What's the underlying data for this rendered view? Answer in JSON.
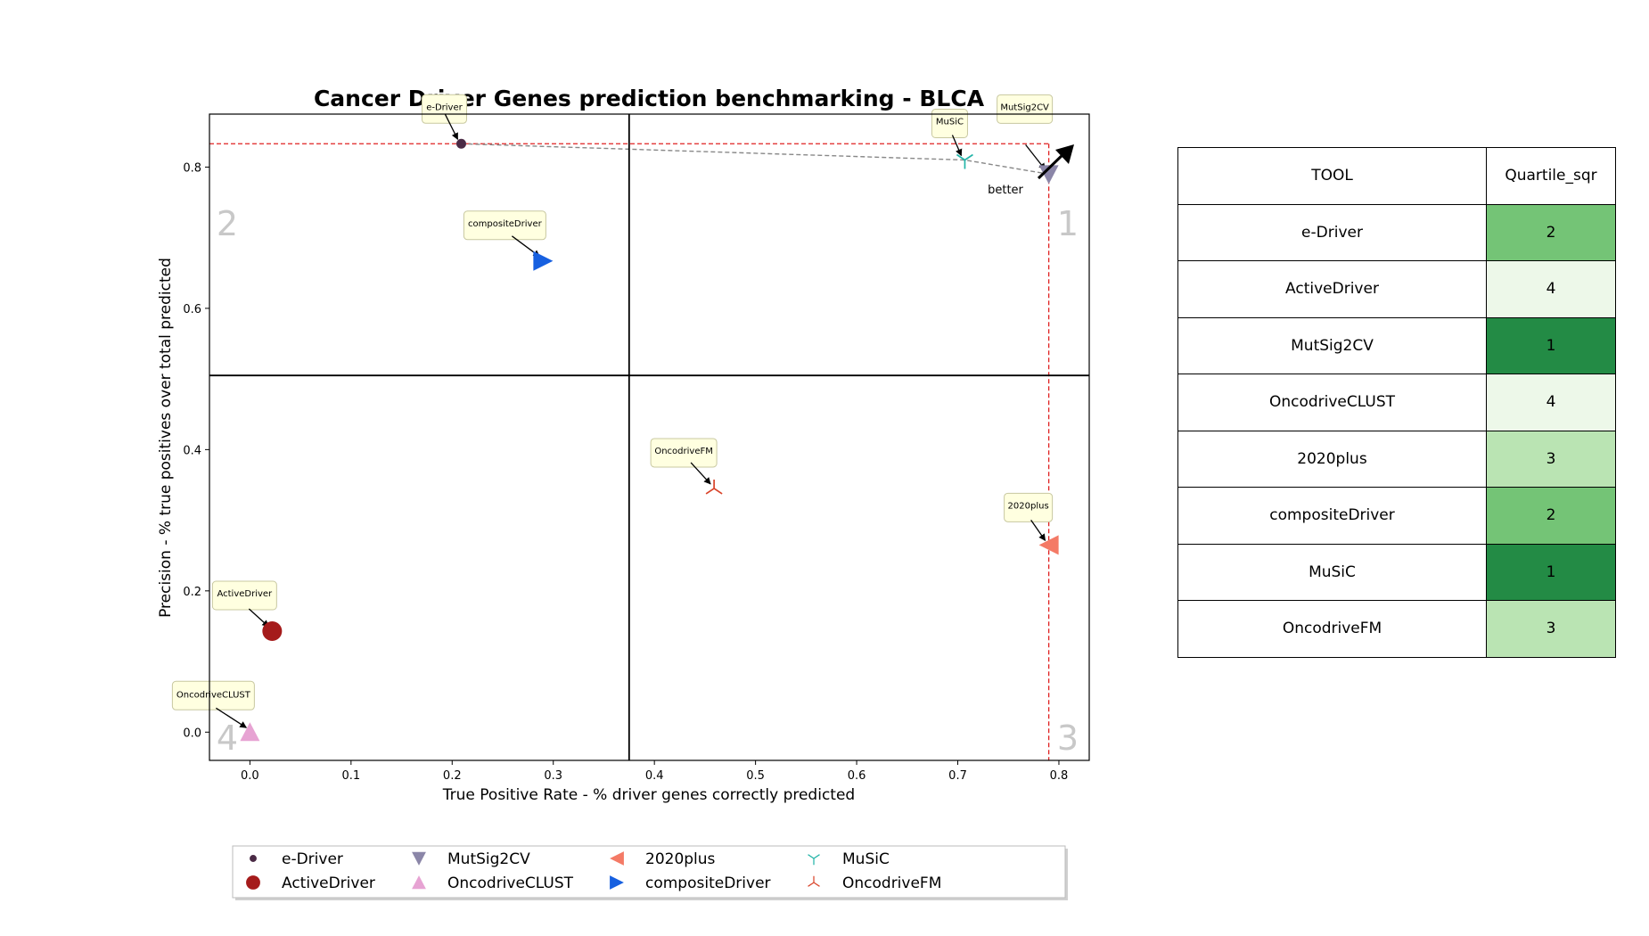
{
  "chart_data": {
    "type": "scatter",
    "title": "Cancer Driver Genes prediction benchmarking - BLCA",
    "xlabel": "True Positive Rate - % driver genes correctly predicted",
    "ylabel": "Precision - % true positives over total predicted",
    "xlim": [
      -0.04,
      0.83
    ],
    "ylim": [
      -0.04,
      0.875
    ],
    "xticks": [
      "0.0",
      "0.1",
      "0.2",
      "0.3",
      "0.4",
      "0.5",
      "0.6",
      "0.7",
      "0.8"
    ],
    "yticks": [
      "0.0",
      "0.2",
      "0.4",
      "0.6",
      "0.8"
    ],
    "quadrant_divider": {
      "x": 0.375,
      "y": 0.505
    },
    "quadrant_labels": [
      "1",
      "2",
      "3",
      "4"
    ],
    "better_label": "better",
    "optimal_lines": {
      "x": 0.79,
      "y": 0.833
    },
    "pareto_front": [
      {
        "x": 0.209,
        "y": 0.833
      },
      {
        "x": 0.707,
        "y": 0.81
      },
      {
        "x": 0.79,
        "y": 0.79
      }
    ],
    "series": [
      {
        "name": "e-Driver",
        "x": 0.209,
        "y": 0.833,
        "marker": "circle-small",
        "color": "#4a2a45",
        "annotation": "e-Driver"
      },
      {
        "name": "ActiveDriver",
        "x": 0.022,
        "y": 0.143,
        "marker": "circle",
        "color": "#a51b1b",
        "annotation": "ActiveDriver"
      },
      {
        "name": "MutSig2CV",
        "x": 0.79,
        "y": 0.79,
        "marker": "triangle-down",
        "color": "#8b86a8",
        "annotation": "MutSig2CV"
      },
      {
        "name": "OncodriveCLUST",
        "x": 0.0,
        "y": 0.0,
        "marker": "triangle-up",
        "color": "#e7a3d3",
        "annotation": "OncodriveCLUST"
      },
      {
        "name": "2020plus",
        "x": 0.79,
        "y": 0.265,
        "marker": "triangle-left",
        "color": "#f47a66",
        "annotation": "2020plus"
      },
      {
        "name": "compositeDriver",
        "x": 0.29,
        "y": 0.667,
        "marker": "triangle-right",
        "color": "#1760e0",
        "annotation": "compositeDriver"
      },
      {
        "name": "MuSiC",
        "x": 0.707,
        "y": 0.81,
        "marker": "tri-down",
        "color": "#23b4a8",
        "annotation": "MuSiC"
      },
      {
        "name": "OncodriveFM",
        "x": 0.459,
        "y": 0.345,
        "marker": "tri-up",
        "color": "#d9442a",
        "annotation": "OncodriveFM"
      }
    ],
    "legend": {
      "placement": "bottom",
      "columns": 5
    }
  },
  "table": {
    "headers": [
      "TOOL",
      "Quartile_sqr"
    ],
    "rows": [
      {
        "tool": "e-Driver",
        "quartile": "2",
        "color": "#74c476"
      },
      {
        "tool": "ActiveDriver",
        "quartile": "4",
        "color": "#edf8e9"
      },
      {
        "tool": "MutSig2CV",
        "quartile": "1",
        "color": "#238b45"
      },
      {
        "tool": "OncodriveCLUST",
        "quartile": "4",
        "color": "#edf8e9"
      },
      {
        "tool": "2020plus",
        "quartile": "3",
        "color": "#bae4b3"
      },
      {
        "tool": "compositeDriver",
        "quartile": "2",
        "color": "#74c476"
      },
      {
        "tool": "MuSiC",
        "quartile": "1",
        "color": "#238b45"
      },
      {
        "tool": "OncodriveFM",
        "quartile": "3",
        "color": "#bae4b3"
      }
    ]
  }
}
